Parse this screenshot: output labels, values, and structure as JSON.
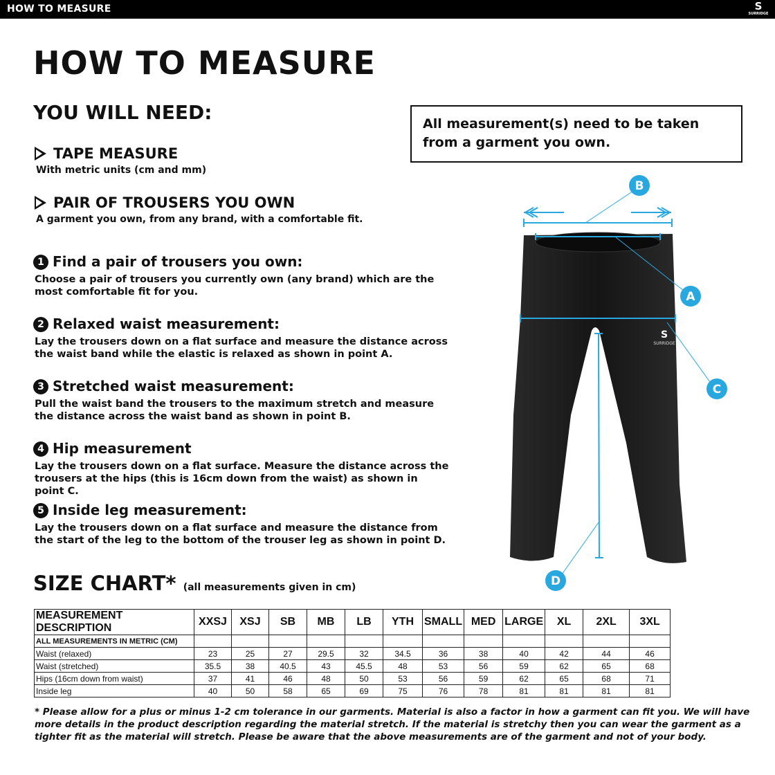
{
  "topbar": {
    "title": "HOW TO MEASURE",
    "logo_text": "SURRIDGE",
    "logo_letter": "S"
  },
  "title": "HOW TO MEASURE",
  "you_will_need": "YOU WILL NEED:",
  "needs": [
    {
      "label": "TAPE MEASURE",
      "sub": "With metric units (cm and mm)"
    },
    {
      "label": "PAIR OF TROUSERS YOU OWN",
      "sub": "A garment you own, from any brand, with a comfortable fit."
    }
  ],
  "notice": "All measurement(s) need to be taken from a garment you own.",
  "steps": [
    {
      "n": "1",
      "title": "Find a pair of trousers you own:",
      "text": "Choose a pair of trousers you currently own (any brand) which are the most comfortable fit for you."
    },
    {
      "n": "2",
      "title": "Relaxed waist measurement:",
      "text": "Lay the trousers down on a flat surface and measure the distance across the waist band while the elastic is relaxed as shown in point A."
    },
    {
      "n": "3",
      "title": "Stretched waist measurement:",
      "text": "Pull the waist band the trousers to the maximum stretch and measure the distance across the waist band as shown in point B."
    },
    {
      "n": "4",
      "title": "Hip measurement",
      "text": "Lay the trousers down on a flat surface. Measure the distance across the trousers at the hips (this is 16cm down from the waist) as shown in point C."
    },
    {
      "n": "5",
      "title": "Inside leg measurement:",
      "text": "Lay the trousers down on a flat surface and measure the distance from the start of the leg to the bottom of the trouser leg as shown in point D."
    }
  ],
  "diagram": {
    "points": [
      "A",
      "B",
      "C",
      "D"
    ],
    "accent": "#29a8e0",
    "garment_logo": "SURRIDGE"
  },
  "size_chart": {
    "title": "SIZE CHART*",
    "subtitle": "(all measurements given in cm)",
    "header": [
      "MEASUREMENT DESCRIPTION",
      "XXSJ",
      "XSJ",
      "SB",
      "MB",
      "LB",
      "YTH",
      "SMALL",
      "MED",
      "LARGE",
      "XL",
      "2XL",
      "3XL"
    ],
    "unit_row": "ALL MEASUREMENTS IN METRIC (CM)",
    "rows": [
      {
        "label": "Waist (relaxed)",
        "values": [
          "23",
          "25",
          "27",
          "29.5",
          "32",
          "34.5",
          "36",
          "38",
          "40",
          "42",
          "44",
          "46"
        ]
      },
      {
        "label": "Waist (stretched)",
        "values": [
          "35.5",
          "38",
          "40.5",
          "43",
          "45.5",
          "48",
          "53",
          "56",
          "59",
          "62",
          "65",
          "68"
        ]
      },
      {
        "label": "Hips (16cm down from waist)",
        "values": [
          "37",
          "41",
          "46",
          "48",
          "50",
          "53",
          "56",
          "59",
          "62",
          "65",
          "68",
          "71"
        ]
      },
      {
        "label": "Inside leg",
        "values": [
          "40",
          "50",
          "58",
          "65",
          "69",
          "75",
          "76",
          "78",
          "81",
          "81",
          "81",
          "81"
        ]
      }
    ]
  },
  "footnote": "* Please allow for a plus or minus 1-2 cm tolerance in our garments. Material is also a factor in how a garment can fit you. We will have more details in the product description regarding the material stretch.  If the material is stretchy then you can wear the garment as a tighter fit as the material will stretch.  Please be aware that the above measurements are of the garment and not of your body."
}
